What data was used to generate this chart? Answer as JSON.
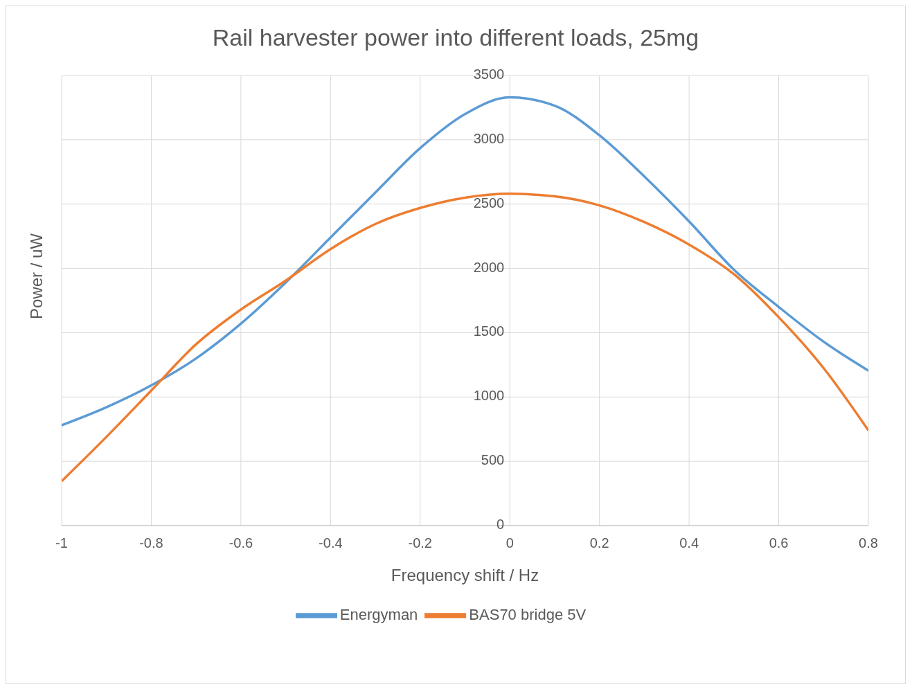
{
  "chart_data": {
    "type": "line",
    "title": "Rail harvester power into different loads, 25mg",
    "xlabel": "Frequency shift / Hz",
    "ylabel": "Power / uW",
    "x": [
      -1,
      -0.9,
      -0.8,
      -0.7,
      -0.6,
      -0.5,
      -0.4,
      -0.3,
      -0.2,
      -0.1,
      0,
      0.1,
      0.2,
      0.3,
      0.4,
      0.5,
      0.6,
      0.7,
      0.8
    ],
    "series": [
      {
        "name": "Energyman",
        "color": "#5b9bd5",
        "values": [
          780,
          920,
          1090,
          1300,
          1570,
          1890,
          2240,
          2590,
          2935,
          3200,
          3330,
          3265,
          3035,
          2715,
          2365,
          1990,
          1700,
          1430,
          1205
        ]
      },
      {
        "name": "BAS70 bridge 5V",
        "color": "#ed7d31",
        "values": [
          345,
          690,
          1050,
          1410,
          1680,
          1905,
          2150,
          2345,
          2470,
          2550,
          2580,
          2560,
          2490,
          2360,
          2185,
          1955,
          1620,
          1225,
          740
        ]
      }
    ],
    "xlim": [
      -1,
      0.8
    ],
    "xticks": [
      -1,
      -0.8,
      -0.6,
      -0.4,
      -0.2,
      0,
      0.2,
      0.4,
      0.6,
      0.8
    ],
    "ylim": [
      0,
      3500
    ],
    "yticks": [
      0,
      500,
      1000,
      1500,
      2000,
      2500,
      3000,
      3500
    ],
    "grid": true,
    "legend": "bottom",
    "marker": "none",
    "line_style": "solid"
  }
}
